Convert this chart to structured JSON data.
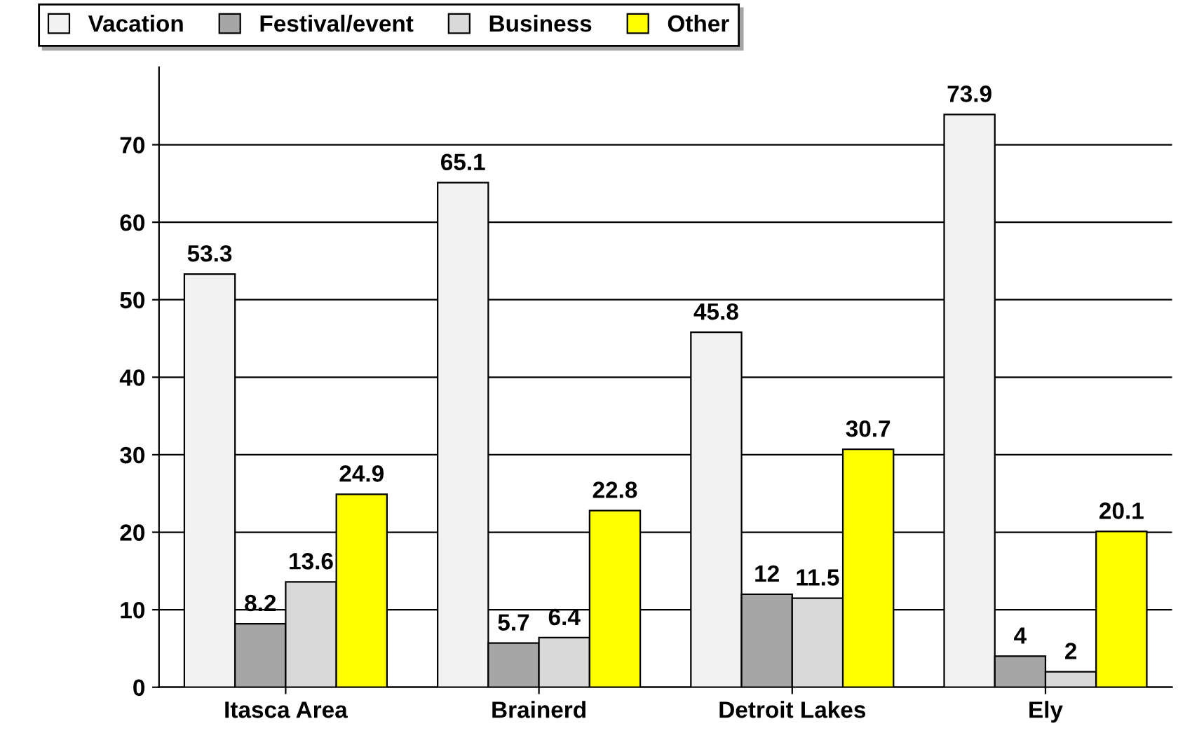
{
  "chart_data": {
    "type": "bar",
    "categories": [
      "Itasca Area",
      "Brainerd",
      "Detroit Lakes",
      "Ely"
    ],
    "series": [
      {
        "name": "Vacation",
        "color": "#f2f2f2",
        "values": [
          53.3,
          65.1,
          45.8,
          73.9
        ]
      },
      {
        "name": "Festival/event",
        "color": "#a6a6a6",
        "values": [
          8.2,
          5.7,
          12,
          4
        ]
      },
      {
        "name": "Business",
        "color": "#d9d9d9",
        "values": [
          13.6,
          6.4,
          11.5,
          2
        ]
      },
      {
        "name": "Other",
        "color": "#ffff00",
        "values": [
          24.9,
          22.8,
          30.7,
          20.1
        ]
      }
    ],
    "ylim": [
      0,
      80
    ],
    "yticks": [
      0,
      10,
      20,
      30,
      40,
      50,
      60,
      70
    ],
    "grid": "y",
    "legend": "top left",
    "data_labels": true
  }
}
